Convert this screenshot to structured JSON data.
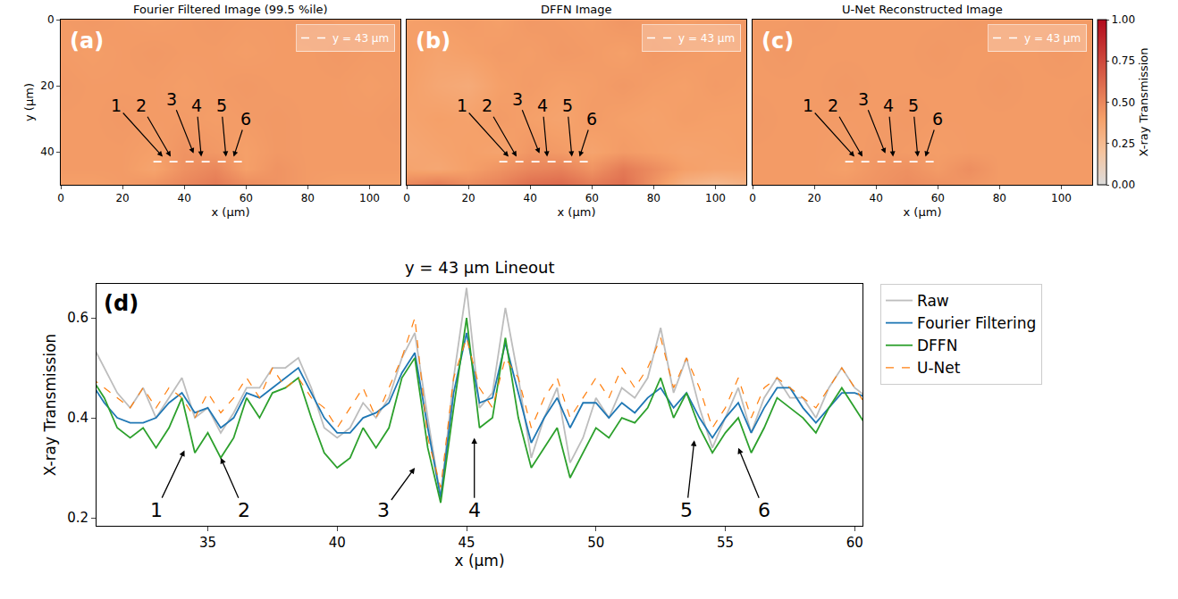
{
  "chart_data": [
    {
      "type": "heatmap",
      "label": "(a)",
      "title": "Fourier Filtered Image (99.5 %ile)",
      "x_label": "x (μm)",
      "y_label": "y (μm)",
      "x": [
        0,
        10,
        20,
        30,
        40,
        50,
        60,
        70,
        80,
        90,
        100,
        110
      ],
      "y": [
        0,
        10,
        20,
        30,
        40,
        45,
        50
      ],
      "z": [
        [
          0.42,
          0.43,
          0.42,
          0.41,
          0.42,
          0.43,
          0.42,
          0.42,
          0.43,
          0.42,
          0.42,
          0.42
        ],
        [
          0.42,
          0.41,
          0.42,
          0.43,
          0.42,
          0.42,
          0.41,
          0.42,
          0.42,
          0.43,
          0.42,
          0.42
        ],
        [
          0.43,
          0.42,
          0.42,
          0.42,
          0.41,
          0.42,
          0.43,
          0.42,
          0.42,
          0.42,
          0.41,
          0.42
        ],
        [
          0.42,
          0.42,
          0.43,
          0.42,
          0.42,
          0.41,
          0.42,
          0.43,
          0.42,
          0.42,
          0.42,
          0.43
        ],
        [
          0.42,
          0.42,
          0.42,
          0.4,
          0.45,
          0.43,
          0.4,
          0.43,
          0.42,
          0.42,
          0.42,
          0.42
        ],
        [
          0.42,
          0.42,
          0.42,
          0.38,
          0.46,
          0.5,
          0.4,
          0.45,
          0.42,
          0.42,
          0.42,
          0.42
        ],
        [
          0.4,
          0.4,
          0.42,
          0.45,
          0.5,
          0.55,
          0.48,
          0.45,
          0.42,
          0.4,
          0.4,
          0.4
        ]
      ],
      "xlim": [
        0,
        110
      ],
      "ylim": [
        50,
        0
      ],
      "xticks": [
        0,
        20,
        40,
        60,
        80,
        100
      ],
      "yticks": [
        0,
        20,
        40
      ],
      "legend": "upper right",
      "series": [
        {
          "name": "y = 43 μm",
          "color": "#ffffff",
          "line_style": "dashed",
          "x": [
            30,
            60
          ],
          "values": [
            43,
            43
          ]
        }
      ],
      "annotations": [
        {
          "text": "1",
          "x": 33,
          "y": 41.5,
          "text_x": 18,
          "text_y": 26
        },
        {
          "text": "2",
          "x": 35.6,
          "y": 41.5,
          "text_x": 26,
          "text_y": 26
        },
        {
          "text": "3",
          "x": 43,
          "y": 40.5,
          "text_x": 36,
          "text_y": 24
        },
        {
          "text": "4",
          "x": 45.5,
          "y": 41.5,
          "text_x": 44,
          "text_y": 26
        },
        {
          "text": "5",
          "x": 53.5,
          "y": 41.5,
          "text_x": 52,
          "text_y": 26
        },
        {
          "text": "6",
          "x": 56,
          "y": 41.5,
          "text_x": 60,
          "text_y": 30
        }
      ]
    },
    {
      "type": "heatmap",
      "label": "(b)",
      "title": "DFFN Image",
      "x_label": "x (μm)",
      "x": [
        0,
        10,
        20,
        30,
        40,
        50,
        60,
        70,
        80,
        90,
        100,
        110
      ],
      "y": [
        0,
        10,
        20,
        30,
        40,
        45,
        50
      ],
      "z": [
        [
          0.4,
          0.41,
          0.42,
          0.4,
          0.43,
          0.42,
          0.41,
          0.44,
          0.42,
          0.41,
          0.42,
          0.43
        ],
        [
          0.41,
          0.38,
          0.4,
          0.42,
          0.41,
          0.43,
          0.42,
          0.4,
          0.43,
          0.42,
          0.41,
          0.42
        ],
        [
          0.4,
          0.36,
          0.34,
          0.4,
          0.42,
          0.4,
          0.41,
          0.43,
          0.41,
          0.4,
          0.42,
          0.41
        ],
        [
          0.38,
          0.4,
          0.39,
          0.42,
          0.4,
          0.38,
          0.42,
          0.4,
          0.39,
          0.41,
          0.4,
          0.4
        ],
        [
          0.36,
          0.38,
          0.4,
          0.38,
          0.44,
          0.42,
          0.38,
          0.42,
          0.4,
          0.38,
          0.39,
          0.4
        ],
        [
          0.38,
          0.36,
          0.4,
          0.45,
          0.5,
          0.52,
          0.45,
          0.55,
          0.48,
          0.4,
          0.38,
          0.38
        ],
        [
          0.5,
          0.55,
          0.48,
          0.52,
          0.6,
          0.62,
          0.55,
          0.6,
          0.45,
          0.3,
          0.25,
          0.3
        ]
      ],
      "xlim": [
        0,
        110
      ],
      "ylim": [
        50,
        0
      ],
      "xticks": [
        0,
        20,
        40,
        60,
        80,
        100
      ],
      "yticks": [
        0,
        20,
        40
      ],
      "tick_labels": "x",
      "legend": "upper right",
      "series": [
        {
          "name": "y = 43 μm",
          "color": "#ffffff",
          "line_style": "dashed",
          "x": [
            30,
            60
          ],
          "values": [
            43,
            43
          ]
        }
      ],
      "annotations": [
        {
          "text": "1",
          "x": 33,
          "y": 41.5,
          "text_x": 18,
          "text_y": 26
        },
        {
          "text": "2",
          "x": 35.6,
          "y": 41.5,
          "text_x": 26,
          "text_y": 26
        },
        {
          "text": "3",
          "x": 43,
          "y": 40.5,
          "text_x": 36,
          "text_y": 24
        },
        {
          "text": "4",
          "x": 45.5,
          "y": 41.5,
          "text_x": 44,
          "text_y": 26
        },
        {
          "text": "5",
          "x": 53.5,
          "y": 41.5,
          "text_x": 52,
          "text_y": 26
        },
        {
          "text": "6",
          "x": 56,
          "y": 41.5,
          "text_x": 60,
          "text_y": 30
        }
      ]
    },
    {
      "type": "heatmap",
      "label": "(c)",
      "title": "U-Net Reconstructed Image",
      "x_label": "x (μm)",
      "x": [
        0,
        10,
        20,
        30,
        40,
        50,
        60,
        70,
        80,
        90,
        100,
        110
      ],
      "y": [
        0,
        10,
        20,
        30,
        40,
        45,
        50
      ],
      "z": [
        [
          0.42,
          0.42,
          0.43,
          0.42,
          0.42,
          0.42,
          0.42,
          0.43,
          0.42,
          0.42,
          0.42,
          0.42
        ],
        [
          0.42,
          0.43,
          0.42,
          0.42,
          0.42,
          0.42,
          0.43,
          0.42,
          0.42,
          0.42,
          0.43,
          0.42
        ],
        [
          0.42,
          0.42,
          0.42,
          0.43,
          0.42,
          0.42,
          0.42,
          0.42,
          0.43,
          0.42,
          0.42,
          0.42
        ],
        [
          0.43,
          0.42,
          0.42,
          0.42,
          0.42,
          0.43,
          0.42,
          0.42,
          0.42,
          0.42,
          0.42,
          0.43
        ],
        [
          0.42,
          0.42,
          0.42,
          0.41,
          0.43,
          0.42,
          0.41,
          0.42,
          0.42,
          0.42,
          0.42,
          0.42
        ],
        [
          0.42,
          0.42,
          0.42,
          0.4,
          0.44,
          0.46,
          0.42,
          0.47,
          0.42,
          0.42,
          0.42,
          0.42
        ],
        [
          0.42,
          0.42,
          0.42,
          0.43,
          0.45,
          0.48,
          0.46,
          0.44,
          0.42,
          0.42,
          0.42,
          0.42
        ]
      ],
      "xlim": [
        0,
        110
      ],
      "ylim": [
        50,
        0
      ],
      "xticks": [
        0,
        20,
        40,
        60,
        80,
        100
      ],
      "yticks": [
        0,
        20,
        40
      ],
      "tick_labels": "x",
      "legend": "upper right",
      "colorbar": {
        "title": "X-ray Transmission",
        "range": [
          0,
          1
        ],
        "ticks": [
          {
            "value": 0,
            "label": "0.00"
          },
          {
            "value": 0.25,
            "label": "0.25"
          },
          {
            "value": 0.5,
            "label": "0.50"
          },
          {
            "value": 0.75,
            "label": "0.75"
          },
          {
            "value": 1,
            "label": "1.00"
          }
        ]
      },
      "series": [
        {
          "name": "y = 43 μm",
          "color": "#ffffff",
          "line_style": "dashed",
          "x": [
            30,
            60
          ],
          "values": [
            43,
            43
          ]
        }
      ],
      "annotations": [
        {
          "text": "1",
          "x": 33,
          "y": 41.5,
          "text_x": 18,
          "text_y": 26
        },
        {
          "text": "2",
          "x": 35.6,
          "y": 41.5,
          "text_x": 26,
          "text_y": 26
        },
        {
          "text": "3",
          "x": 43,
          "y": 40.5,
          "text_x": 36,
          "text_y": 24
        },
        {
          "text": "4",
          "x": 45.5,
          "y": 41.5,
          "text_x": 44,
          "text_y": 26
        },
        {
          "text": "5",
          "x": 53.5,
          "y": 41.5,
          "text_x": 52,
          "text_y": 26
        },
        {
          "text": "6",
          "x": 56,
          "y": 41.5,
          "text_x": 60,
          "text_y": 30
        }
      ]
    },
    {
      "type": "line",
      "label": "(d)",
      "title": "y = 43 μm Lineout",
      "x_label": "x (μm)",
      "y_label": "X-ray Transmission",
      "x": [
        30.5,
        31,
        31.5,
        32,
        32.5,
        33,
        33.5,
        34,
        34.5,
        35,
        35.5,
        36,
        36.5,
        37,
        37.5,
        38,
        38.5,
        39,
        39.5,
        40,
        40.5,
        41,
        41.5,
        42,
        42.5,
        43,
        43.5,
        44,
        44.5,
        45,
        45.5,
        46,
        46.5,
        47,
        47.5,
        48,
        48.5,
        49,
        49.5,
        50,
        50.5,
        51,
        51.5,
        52,
        52.5,
        53,
        53.5,
        54,
        54.5,
        55,
        55.5,
        56,
        56.5,
        57,
        57.5,
        58,
        58.5,
        59,
        59.5,
        60,
        60.5
      ],
      "series": [
        {
          "name": "Raw",
          "color": "#bdbdbd",
          "line_style": "solid",
          "values": [
            0.55,
            0.5,
            0.45,
            0.42,
            0.46,
            0.4,
            0.44,
            0.48,
            0.4,
            0.42,
            0.37,
            0.41,
            0.46,
            0.46,
            0.5,
            0.5,
            0.52,
            0.46,
            0.38,
            0.36,
            0.38,
            0.43,
            0.4,
            0.44,
            0.52,
            0.57,
            0.4,
            0.24,
            0.48,
            0.66,
            0.42,
            0.45,
            0.62,
            0.48,
            0.32,
            0.4,
            0.46,
            0.31,
            0.36,
            0.44,
            0.4,
            0.46,
            0.44,
            0.48,
            0.58,
            0.45,
            0.52,
            0.42,
            0.34,
            0.4,
            0.46,
            0.37,
            0.44,
            0.48,
            0.44,
            0.44,
            0.4,
            0.46,
            0.5,
            0.46,
            0.44
          ]
        },
        {
          "name": "Fourier Filtering",
          "color": "#1f77b4",
          "line_style": "solid",
          "values": [
            0.47,
            0.43,
            0.4,
            0.39,
            0.39,
            0.4,
            0.43,
            0.45,
            0.41,
            0.42,
            0.38,
            0.4,
            0.45,
            0.44,
            0.46,
            0.48,
            0.5,
            0.45,
            0.4,
            0.37,
            0.37,
            0.4,
            0.41,
            0.43,
            0.49,
            0.53,
            0.38,
            0.24,
            0.45,
            0.57,
            0.43,
            0.44,
            0.55,
            0.45,
            0.35,
            0.4,
            0.44,
            0.38,
            0.43,
            0.43,
            0.4,
            0.43,
            0.41,
            0.44,
            0.46,
            0.42,
            0.45,
            0.4,
            0.36,
            0.4,
            0.43,
            0.37,
            0.42,
            0.46,
            0.46,
            0.42,
            0.39,
            0.42,
            0.45,
            0.45,
            0.44
          ]
        },
        {
          "name": "DFFN",
          "color": "#2ca02c",
          "line_style": "solid",
          "values": [
            0.48,
            0.44,
            0.38,
            0.36,
            0.38,
            0.34,
            0.38,
            0.44,
            0.33,
            0.37,
            0.32,
            0.36,
            0.44,
            0.4,
            0.45,
            0.46,
            0.48,
            0.4,
            0.33,
            0.3,
            0.32,
            0.38,
            0.34,
            0.38,
            0.48,
            0.52,
            0.34,
            0.23,
            0.42,
            0.6,
            0.38,
            0.4,
            0.56,
            0.4,
            0.3,
            0.34,
            0.38,
            0.28,
            0.33,
            0.38,
            0.36,
            0.4,
            0.39,
            0.42,
            0.48,
            0.4,
            0.45,
            0.38,
            0.33,
            0.37,
            0.4,
            0.33,
            0.38,
            0.44,
            0.42,
            0.4,
            0.37,
            0.42,
            0.46,
            0.42,
            0.38
          ]
        },
        {
          "name": "U-Net",
          "color": "#ff7f0e",
          "line_style": "dashed",
          "values": [
            0.48,
            0.46,
            0.44,
            0.42,
            0.46,
            0.42,
            0.46,
            0.44,
            0.4,
            0.45,
            0.41,
            0.44,
            0.48,
            0.44,
            0.5,
            0.46,
            0.48,
            0.44,
            0.42,
            0.38,
            0.42,
            0.46,
            0.4,
            0.46,
            0.52,
            0.6,
            0.36,
            0.26,
            0.48,
            0.56,
            0.46,
            0.42,
            0.52,
            0.48,
            0.38,
            0.44,
            0.48,
            0.4,
            0.44,
            0.48,
            0.44,
            0.5,
            0.46,
            0.5,
            0.56,
            0.46,
            0.52,
            0.46,
            0.38,
            0.42,
            0.48,
            0.4,
            0.46,
            0.48,
            0.46,
            0.44,
            0.42,
            0.46,
            0.5,
            0.46,
            0.42
          ]
        }
      ],
      "xlim": [
        30.7,
        60.3
      ],
      "ylim": [
        0.184,
        0.668
      ],
      "xticks": [
        35,
        40,
        45,
        50,
        55,
        60
      ],
      "yticks": [
        0.2,
        0.4,
        0.6
      ],
      "legend": "right",
      "annotations": [
        {
          "text": "1",
          "x": 34.1,
          "y": 0.335,
          "text_x": 33.0,
          "text_y": 0.215
        },
        {
          "text": "2",
          "x": 35.5,
          "y": 0.32,
          "text_x": 36.4,
          "text_y": 0.215
        },
        {
          "text": "3",
          "x": 43.0,
          "y": 0.3,
          "text_x": 41.8,
          "text_y": 0.215
        },
        {
          "text": "4",
          "x": 45.3,
          "y": 0.36,
          "text_x": 45.3,
          "text_y": 0.215
        },
        {
          "text": "5",
          "x": 53.8,
          "y": 0.355,
          "text_x": 53.5,
          "text_y": 0.215
        },
        {
          "text": "6",
          "x": 55.5,
          "y": 0.34,
          "text_x": 56.5,
          "text_y": 0.215
        }
      ]
    }
  ]
}
